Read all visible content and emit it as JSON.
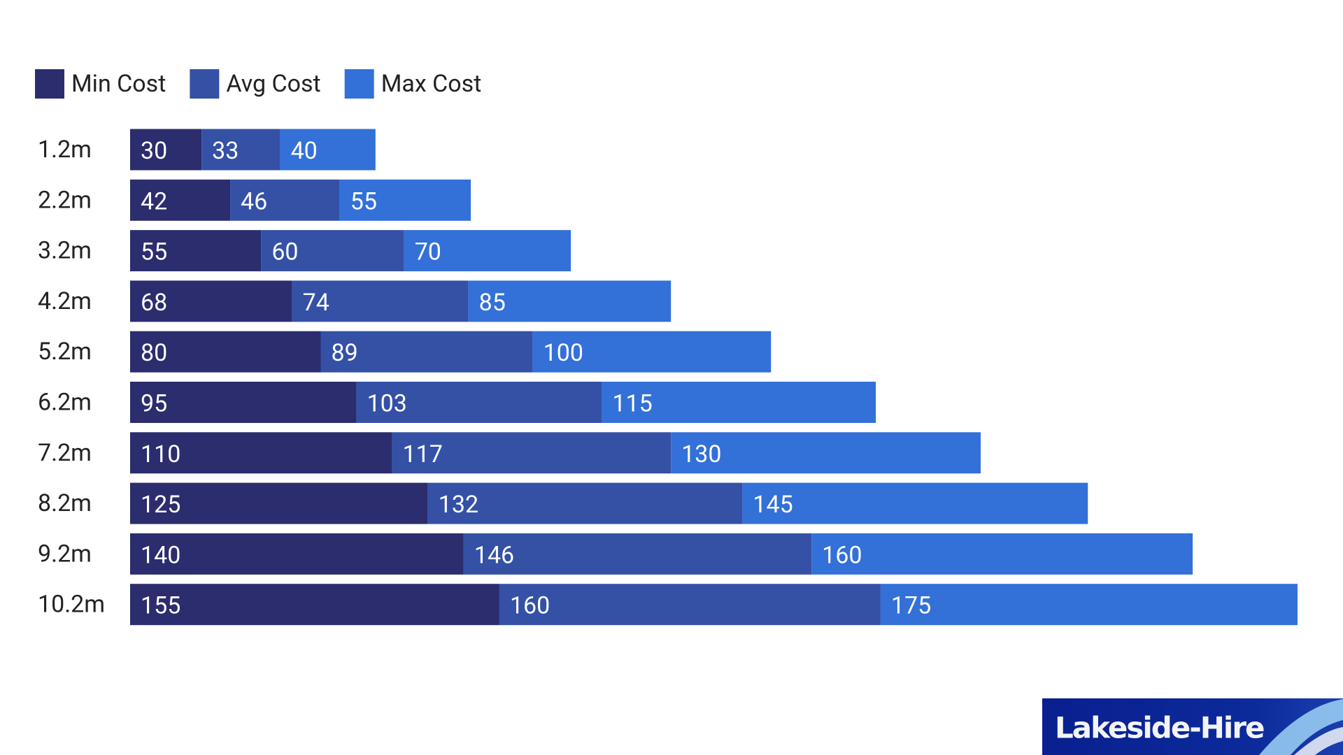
{
  "chart_data": {
    "type": "stacked-bar-horizontal",
    "categories": [
      "1.2m",
      "2.2m",
      "3.2m",
      "4.2m",
      "5.2m",
      "6.2m",
      "7.2m",
      "8.2m",
      "9.2m",
      "10.2m"
    ],
    "series": [
      {
        "name": "Min Cost",
        "color": "#2b2d6e",
        "values": [
          30,
          42,
          55,
          68,
          80,
          95,
          110,
          125,
          140,
          155
        ]
      },
      {
        "name": "Avg Cost",
        "color": "#3451a6",
        "values": [
          33,
          46,
          60,
          74,
          89,
          103,
          117,
          132,
          146,
          160
        ]
      },
      {
        "name": "Max Cost",
        "color": "#3370d8",
        "values": [
          40,
          55,
          70,
          85,
          100,
          115,
          130,
          145,
          160,
          175
        ]
      }
    ],
    "legend": "top-left"
  },
  "logo": "Lakeside-Hire"
}
